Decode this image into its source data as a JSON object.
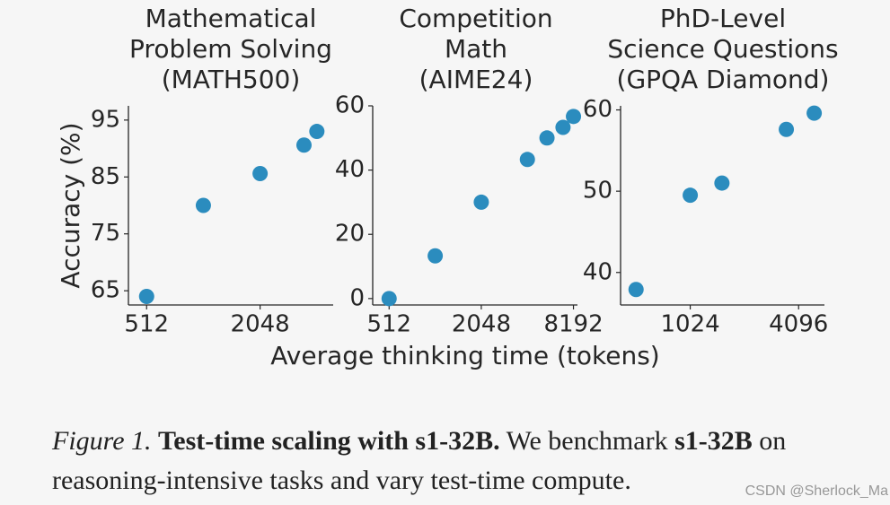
{
  "chart_data": [
    {
      "type": "scatter",
      "title": [
        "Mathematical",
        "Problem Solving",
        "(MATH500)"
      ],
      "xscale": "log2",
      "x": [
        512,
        1024,
        2048,
        3500,
        4096
      ],
      "y": [
        64.0,
        80.0,
        85.6,
        90.6,
        93.0
      ],
      "xticks": [
        "512",
        "2048"
      ],
      "xtick_values": [
        512,
        2048
      ],
      "yticks": [
        "65",
        "75",
        "85",
        "95"
      ],
      "ytick_values": [
        65,
        75,
        85,
        95
      ],
      "xlim": [
        410,
        5000
      ],
      "ylim": [
        62.5,
        97.5
      ],
      "ylabel": "Accuracy (%)",
      "color": "#2b8cbe"
    },
    {
      "type": "scatter",
      "title": [
        "Competition",
        "Math",
        "(AIME24)"
      ],
      "xscale": "log2",
      "x": [
        512,
        1024,
        2048,
        4096,
        5500,
        7000,
        8192
      ],
      "y": [
        0.0,
        13.3,
        30.0,
        43.3,
        50.0,
        53.3,
        56.7
      ],
      "xticks": [
        "512",
        "2048",
        "8192"
      ],
      "xtick_values": [
        512,
        2048,
        8192
      ],
      "yticks": [
        "0",
        "20",
        "40",
        "60"
      ],
      "ytick_values": [
        0,
        20,
        40,
        60
      ],
      "xlim": [
        400,
        8700
      ],
      "ylim": [
        -2,
        60
      ],
      "color": "#2b8cbe"
    },
    {
      "type": "scatter",
      "title": [
        "PhD-Level",
        "Science Questions",
        "(GPQA Diamond)"
      ],
      "xscale": "log2",
      "x": [
        512,
        1024,
        1536,
        3500,
        5000
      ],
      "y": [
        37.9,
        49.5,
        51.0,
        57.6,
        59.6
      ],
      "xticks": [
        "1024",
        "4096"
      ],
      "xtick_values": [
        1024,
        4096
      ],
      "yticks": [
        "40",
        "50",
        "60"
      ],
      "ytick_values": [
        40,
        50,
        60
      ],
      "xlim": [
        420,
        5700
      ],
      "ylim": [
        36,
        60.5
      ],
      "color": "#2b8cbe"
    }
  ],
  "xlabel": "Average thinking time (tokens)",
  "caption": {
    "fig_label": "Figure 1.",
    "bold_title": "Test-time scaling with s1-32B.",
    "text1": " We benchmark ",
    "bold_model": "s1-32B",
    "text2": " on reasoning-intensive tasks and vary test-time compute."
  },
  "watermark": "CSDN @Sherlock_Ma"
}
